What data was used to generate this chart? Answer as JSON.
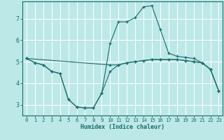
{
  "xlabel": "Humidex (Indice chaleur)",
  "xlim": [
    -0.5,
    23.5
  ],
  "ylim": [
    2.5,
    7.8
  ],
  "yticks": [
    3,
    4,
    5,
    6,
    7
  ],
  "xticks": [
    0,
    1,
    2,
    3,
    4,
    5,
    6,
    7,
    8,
    9,
    10,
    11,
    12,
    13,
    14,
    15,
    16,
    17,
    18,
    19,
    20,
    21,
    22,
    23
  ],
  "bg_color": "#bde8e8",
  "line_color": "#1a6b6b",
  "grid_color": "#ffffff",
  "lines": [
    {
      "x": [
        0,
        1,
        2,
        3,
        4,
        5,
        6,
        7,
        8,
        9,
        10,
        11,
        12,
        13,
        14,
        15,
        16,
        17,
        18,
        19,
        20,
        21,
        22,
        23
      ],
      "y": [
        5.15,
        4.95,
        4.85,
        4.55,
        4.45,
        3.25,
        2.9,
        2.85,
        2.85,
        3.55,
        4.55,
        4.85,
        4.95,
        5.0,
        5.05,
        5.1,
        5.1,
        5.1,
        5.1,
        5.05,
        5.0,
        4.95,
        4.65,
        3.65
      ]
    },
    {
      "x": [
        0,
        1,
        2,
        3,
        4,
        5,
        6,
        7,
        8,
        9,
        10,
        11,
        12,
        13,
        14,
        15,
        16,
        17,
        18,
        19,
        20,
        21,
        22,
        23
      ],
      "y": [
        5.15,
        4.95,
        4.85,
        4.55,
        4.45,
        3.25,
        2.9,
        2.85,
        2.85,
        3.55,
        5.85,
        6.85,
        6.85,
        7.05,
        7.55,
        7.6,
        6.5,
        5.4,
        5.25,
        5.2,
        5.15,
        4.95,
        4.65,
        3.65
      ]
    },
    {
      "x": [
        0,
        10,
        11,
        12,
        13,
        14,
        15,
        16,
        17,
        18,
        19,
        20,
        21,
        22,
        23
      ],
      "y": [
        5.15,
        4.85,
        4.85,
        4.95,
        5.0,
        5.05,
        5.1,
        5.1,
        5.1,
        5.1,
        5.05,
        5.0,
        4.95,
        4.65,
        3.65
      ]
    }
  ]
}
